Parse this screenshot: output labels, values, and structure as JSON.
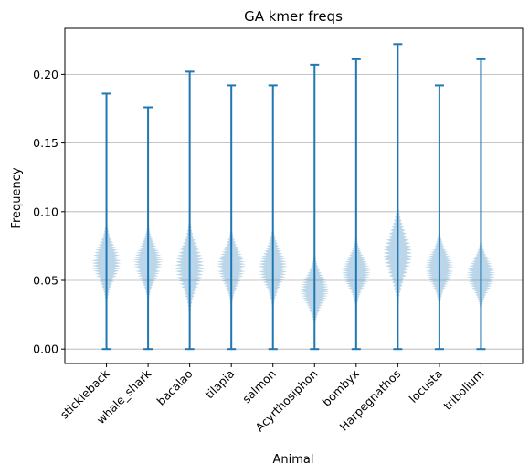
{
  "chart_data": {
    "type": "violin",
    "title": "GA kmer freqs",
    "xlabel": "Animal",
    "ylabel": "Frequency",
    "ylim": [
      -0.0105,
      0.2335
    ],
    "yticks": [
      0.0,
      0.05,
      0.1,
      0.15,
      0.2
    ],
    "ytick_labels": [
      "0.00",
      "0.05",
      "0.10",
      "0.15",
      "0.20"
    ],
    "grid": "y",
    "categories": [
      "stickleback",
      "whale_shark",
      "bacalao",
      "tilapia",
      "salmon",
      "Acyrthosiphon",
      "bombyx",
      "Harpegnathos",
      "locusta",
      "tribolium"
    ],
    "series": [
      {
        "min": 0.0,
        "max": 0.186,
        "center": 0.063,
        "spread": 0.012,
        "body_low": 0.03,
        "body_high": 0.097
      },
      {
        "min": 0.0,
        "max": 0.176,
        "center": 0.063,
        "spread": 0.0115,
        "body_low": 0.033,
        "body_high": 0.092
      },
      {
        "min": 0.0,
        "max": 0.202,
        "center": 0.06,
        "spread": 0.014,
        "body_low": 0.02,
        "body_high": 0.1
      },
      {
        "min": 0.0,
        "max": 0.192,
        "center": 0.06,
        "spread": 0.0115,
        "body_low": 0.03,
        "body_high": 0.092
      },
      {
        "min": 0.0,
        "max": 0.192,
        "center": 0.059,
        "spread": 0.012,
        "body_low": 0.028,
        "body_high": 0.094
      },
      {
        "min": 0.0,
        "max": 0.207,
        "center": 0.043,
        "spread": 0.0105,
        "body_low": 0.015,
        "body_high": 0.074
      },
      {
        "min": 0.0,
        "max": 0.211,
        "center": 0.056,
        "spread": 0.0105,
        "body_low": 0.03,
        "body_high": 0.086
      },
      {
        "min": 0.0,
        "max": 0.222,
        "center": 0.069,
        "spread": 0.015,
        "body_low": 0.032,
        "body_high": 0.115
      },
      {
        "min": 0.0,
        "max": 0.192,
        "center": 0.059,
        "spread": 0.011,
        "body_low": 0.032,
        "body_high": 0.086
      },
      {
        "min": 0.0,
        "max": 0.211,
        "center": 0.054,
        "spread": 0.0105,
        "body_low": 0.028,
        "body_high": 0.085
      }
    ],
    "colors": {
      "line": "#1f77b4",
      "body": "#1f77b4",
      "grid": "#b0b0b0",
      "axes": "#000000"
    }
  }
}
